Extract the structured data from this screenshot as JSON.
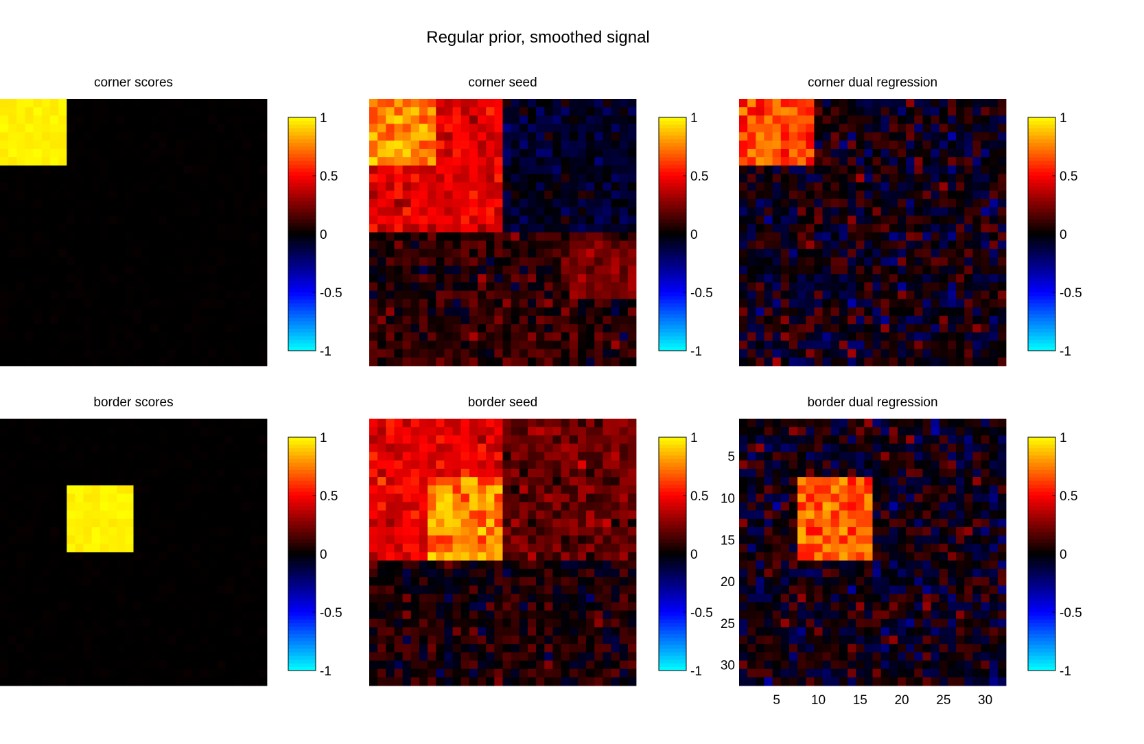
{
  "figure_title": "Regular prior, smoothed signal",
  "colors": {
    "colormap_stops": [
      "#00ffff",
      "#0000ff",
      "#000000",
      "#ff0000",
      "#ffff00"
    ],
    "background": "#ffffff"
  },
  "chart_data": [
    {
      "type": "heatmap",
      "title": "corner scores",
      "grid_size": 32,
      "pattern": "corner",
      "clim": [
        -1,
        1
      ],
      "colorbar_ticks": [
        "1",
        "0.5",
        "0",
        "-0.5",
        "-1"
      ],
      "signal_region": {
        "rows": [
          1,
          8
        ],
        "cols": [
          1,
          8
        ]
      },
      "signal_level": 1.0,
      "noise_level": 0.03
    },
    {
      "type": "heatmap",
      "title": "corner seed",
      "grid_size": 32,
      "pattern": "corner_seed",
      "clim": [
        -1,
        1
      ],
      "colorbar_ticks": [
        "1",
        "0.5",
        "0",
        "-0.5",
        "-1"
      ],
      "signal_region": {
        "rows": [
          1,
          8
        ],
        "cols": [
          1,
          8
        ]
      },
      "signal_level": 0.95,
      "noise_level": 0.15
    },
    {
      "type": "heatmap",
      "title": "corner dual regression",
      "grid_size": 32,
      "pattern": "corner",
      "clim": [
        -1,
        1
      ],
      "colorbar_ticks": [
        "1",
        "0.5",
        "0",
        "-0.5",
        "-1"
      ],
      "signal_region": {
        "rows": [
          1,
          8
        ],
        "cols": [
          1,
          9
        ]
      },
      "signal_level": 0.8,
      "noise_level": 0.2
    },
    {
      "type": "heatmap",
      "title": "border scores",
      "grid_size": 32,
      "pattern": "center",
      "clim": [
        -1,
        1
      ],
      "colorbar_ticks": [
        "1",
        "0.5",
        "0",
        "-0.5",
        "-1"
      ],
      "signal_region": {
        "rows": [
          9,
          16
        ],
        "cols": [
          9,
          16
        ]
      },
      "signal_level": 1.0,
      "noise_level": 0.03
    },
    {
      "type": "heatmap",
      "title": "border seed",
      "grid_size": 32,
      "pattern": "border_seed",
      "clim": [
        -1,
        1
      ],
      "colorbar_ticks": [
        "1",
        "0.5",
        "0",
        "-0.5",
        "-1"
      ],
      "signal_region": {
        "rows": [
          8,
          17
        ],
        "cols": [
          8,
          16
        ]
      },
      "signal_level": 0.95,
      "noise_level": 0.15
    },
    {
      "type": "heatmap",
      "title": "border dual regression",
      "grid_size": 32,
      "pattern": "center",
      "clim": [
        -1,
        1
      ],
      "colorbar_ticks": [
        "1",
        "0.5",
        "0",
        "-0.5",
        "-1"
      ],
      "signal_region": {
        "rows": [
          8,
          17
        ],
        "cols": [
          8,
          16
        ]
      },
      "signal_level": 0.85,
      "noise_level": 0.2,
      "y_ticks": [
        "5",
        "10",
        "15",
        "20",
        "25",
        "30"
      ],
      "x_ticks": [
        "5",
        "10",
        "15",
        "20",
        "25",
        "30"
      ]
    }
  ]
}
